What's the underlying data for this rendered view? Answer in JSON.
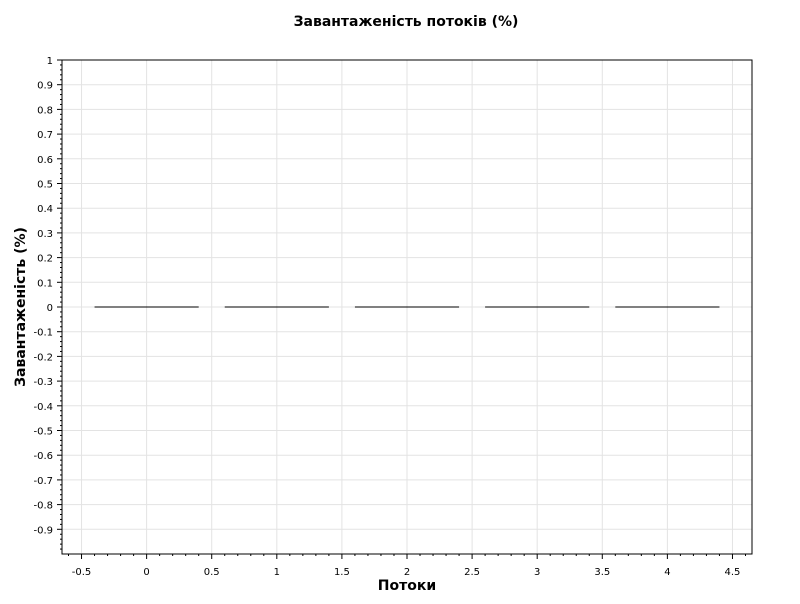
{
  "chart_data": {
    "type": "bar",
    "title": "Завантаженість потоків (%)",
    "xlabel": "Потоки",
    "ylabel": "Завантаженість (%)",
    "xlim": [
      -0.65,
      4.65
    ],
    "ylim": [
      -1.0,
      1.0
    ],
    "x_ticks": [
      -0.5,
      0,
      0.5,
      1,
      1.5,
      2,
      2.5,
      3,
      3.5,
      4,
      4.5
    ],
    "x_tick_labels": [
      "-0.5",
      "0",
      "0.5",
      "1",
      "1.5",
      "2",
      "2.5",
      "3",
      "3.5",
      "4",
      "4.5"
    ],
    "y_ticks": [
      1,
      0.9,
      0.8,
      0.7,
      0.6,
      0.5,
      0.4,
      0.3,
      0.2,
      0.1,
      0,
      -0.1,
      -0.2,
      -0.3,
      -0.4,
      -0.5,
      -0.6,
      -0.7,
      -0.8,
      -0.9
    ],
    "y_tick_labels": [
      "1",
      "0.9",
      "0.8",
      "0.7",
      "0.6",
      "0.5",
      "0.4",
      "0.3",
      "0.2",
      "0.1",
      "0",
      "-0.1",
      "-0.2",
      "-0.3",
      "-0.4",
      "-0.5",
      "-0.6",
      "-0.7",
      "-0.8",
      "-0.9"
    ],
    "categories": [
      0,
      1,
      2,
      3,
      4
    ],
    "values": [
      0,
      0,
      0,
      0,
      0
    ],
    "bar_width": 0.8,
    "grid": true,
    "colors": {
      "bar": "#000000",
      "grid": "#e3e3e3",
      "axis": "#000000",
      "text": "#000000"
    }
  }
}
